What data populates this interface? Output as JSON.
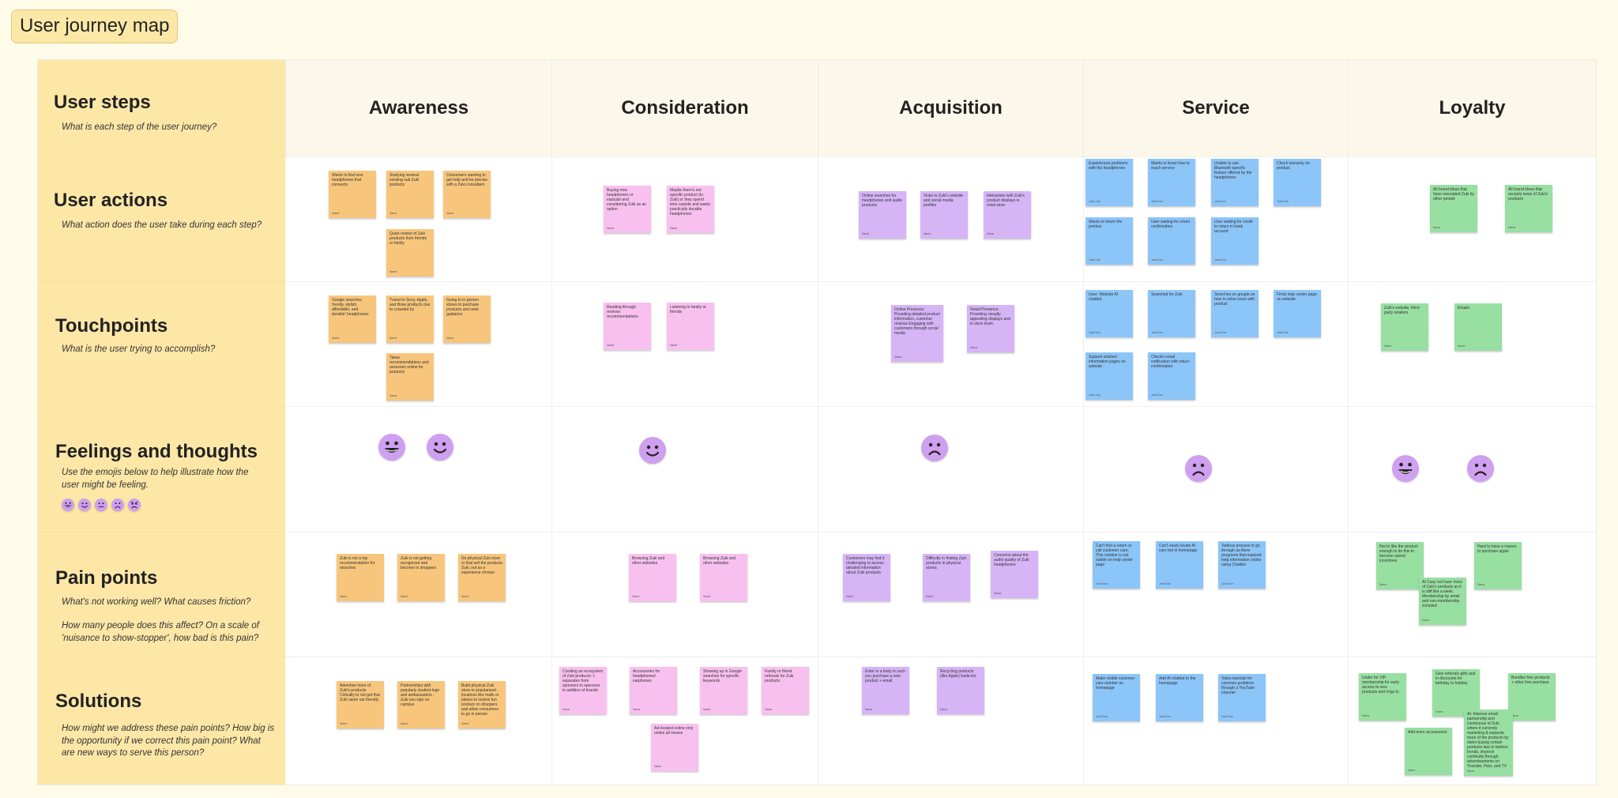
{
  "title": "User journey map",
  "columns": [
    "Awareness",
    "Consideration",
    "Acquisition",
    "Service",
    "Loyalty"
  ],
  "rows": {
    "user_steps": {
      "title": "User steps",
      "sub": "What is each step of the user journey?"
    },
    "user_actions": {
      "title": "User actions",
      "sub": "What action does the user take during each step?"
    },
    "touchpoints": {
      "title": "Touchpoints",
      "sub": "What is the user trying to accomplish?"
    },
    "feelings": {
      "title": "Feelings and thoughts",
      "sub": "Use the emojis below to help illustrate how the user might be feeling."
    },
    "pain_points": {
      "title": "Pain points",
      "sub1": "What's not working well? What causes friction?",
      "sub2": "How many people does this affect? On a scale of 'nuisance to show-stopper', how bad is this pain?"
    },
    "solutions": {
      "title": "Solutions",
      "sub": "How might we address these pain points? How big is the opportunity if we correct this pain point? What are new ways to serve this person?"
    }
  },
  "colors": {
    "orange": "#f7c67c",
    "pink": "#f8c0ef",
    "purple": "#d6b4f6",
    "blue": "#8cc5f8",
    "green": "#98dfa2",
    "label_bg": "#fde7a7",
    "emoji": "#cf9ff0"
  },
  "legend_emojis": [
    "very-happy",
    "happy",
    "neutral",
    "sad",
    "angry"
  ],
  "feelings": [
    {
      "column": "Awareness",
      "mood": "very-happy"
    },
    {
      "column": "Awareness",
      "mood": "happy"
    },
    {
      "column": "Consideration",
      "mood": "happy"
    },
    {
      "column": "Acquisition",
      "mood": "sad"
    },
    {
      "column": "Service",
      "mood": "sad"
    },
    {
      "column": "Loyalty",
      "mood": "very-happy"
    },
    {
      "column": "Loyalty",
      "mood": "sad"
    }
  ],
  "notes": [
    {
      "text": "Wants to find new headphones that connects",
      "author": "Name",
      "color": "orange"
    },
    {
      "text": "Studying several existing sub Zuki products",
      "author": "Name",
      "color": "orange"
    },
    {
      "text": "Consumers wanting to get help and be precise with a Zuki consultant",
      "author": "Name",
      "color": "orange"
    },
    {
      "text": "Quick review of Zuki products from friends or family",
      "author": "Name",
      "color": "orange"
    },
    {
      "text": "Buying new headphones or earbuds and considering Zuki as an option",
      "author": "Name",
      "color": "pink"
    },
    {
      "text": "Maybe there's not specific product (to Zuki) or they spend time outside and wants practically durable headphones",
      "author": "Name",
      "color": "pink"
    },
    {
      "text": "Online searches for headphones and audio products",
      "author": "Name",
      "color": "purple"
    },
    {
      "text": "Visits to Zuki's website and social media profiles",
      "author": "Name",
      "color": "purple"
    },
    {
      "text": "Interaction with Zuki's product displays in retail store",
      "author": "Name",
      "color": "purple"
    },
    {
      "text": "Experiences problems with the headphones",
      "author": "Jane Doe",
      "color": "blue"
    },
    {
      "text": "Wants to know how to reach service",
      "author": "Jane Doe",
      "color": "blue"
    },
    {
      "text": "Unable to use Bluetooth specific feature offered by the headphones",
      "author": "Jane Doe",
      "color": "blue"
    },
    {
      "text": "Check warranty on product",
      "author": "Jane Doe",
      "color": "blue"
    },
    {
      "text": "Wants to return the product",
      "author": "Jane Doe",
      "color": "blue"
    },
    {
      "text": "User waiting for return confirmation",
      "author": "Jane Doe",
      "color": "blue"
    },
    {
      "text": "User waiting for credit to return in bank account",
      "author": "Jane Doe",
      "color": "blue"
    },
    {
      "text": "All brand ideas that have resonated Zuki by other people",
      "author": "Name",
      "color": "green"
    },
    {
      "text": "All brand ideas that accepts news of Zuki's products",
      "author": "Name",
      "color": "green"
    },
    {
      "text": "Google searches 'trendy, stylish, affordable, and durable' headphones",
      "author": "Name",
      "color": "orange"
    },
    {
      "text": "Tuned to Sony, Apple, and Bose products due to crowded by",
      "author": "Name",
      "color": "orange"
    },
    {
      "text": "Going to in person stores to purchase products and seek guidance",
      "author": "Name",
      "color": "orange"
    },
    {
      "text": "Takes recommendations and assesses online for products",
      "author": "Name",
      "color": "orange"
    },
    {
      "text": "Reading through reviews recommendations",
      "author": "Name",
      "color": "pink"
    },
    {
      "text": "Listening to family or friends",
      "author": "Name",
      "color": "pink"
    },
    {
      "text": "Online Presence: Providing detailed product information, customer reviews Engaging with customers through social media",
      "author": "Name",
      "color": "purple"
    },
    {
      "text": "Retail Presence: Providing visually appealing displays and in store team",
      "author": "Name",
      "color": "purple"
    },
    {
      "text": "User: Website Al chatbot",
      "author": "Jane Doe",
      "color": "blue"
    },
    {
      "text": "Searched for Zuki",
      "author": "Jane Doe",
      "color": "blue"
    },
    {
      "text": "Searches on google on how to solve issue with product",
      "author": "Jane Doe",
      "color": "blue"
    },
    {
      "text": "Finds help center page on website",
      "author": "Jane Doe",
      "color": "blue"
    },
    {
      "text": "Support articles/ information pages on website",
      "author": "Jane Doe",
      "color": "blue"
    },
    {
      "text": "Checks email notification with return confirmation",
      "author": "Jane Doe",
      "color": "blue"
    },
    {
      "text": "Zuki's website, third-party retailers",
      "author": "Name",
      "color": "green"
    },
    {
      "text": "Emails",
      "author": "Name",
      "color": "green"
    },
    {
      "text": "Zuki is not a top recommendation for searches",
      "author": "Name",
      "color": "orange"
    },
    {
      "text": "Zuki is not getting recognized and become to shoppers",
      "author": "Name",
      "color": "orange"
    },
    {
      "text": "No physical Zuki store or that sell the products Zuki, not as a experience choose",
      "author": "Name",
      "color": "orange"
    },
    {
      "text": "Browsing Zuki and other websites",
      "author": "Name",
      "color": "pink"
    },
    {
      "text": "Browsing Zuki and other websites",
      "author": "Name",
      "color": "pink"
    },
    {
      "text": "Customers may find it challenging to access detailed information about Zuki products",
      "author": "Name",
      "color": "purple"
    },
    {
      "text": "Difficulty in finding Zuki products in physical stores",
      "author": "Name",
      "color": "purple"
    },
    {
      "text": "Concerns about the audio quality of Zuki headphones",
      "author": "Name",
      "color": "purple"
    },
    {
      "text": "Can't find a return or call customer care. This number is not visible on help center page",
      "author": "Jane Doe",
      "color": "blue"
    },
    {
      "text": "Can't easily locate AI care bot in homepage",
      "author": "Jane Doe",
      "color": "blue"
    },
    {
      "text": "Tedious process to go through as there programs that required help information online using Chatbot",
      "author": "Jane Doe",
      "color": "blue"
    },
    {
      "text": "Not to like the product enough to do this to become spend incentives",
      "author": "Name",
      "color": "green"
    },
    {
      "text": "Hard to have a reason to purchase again",
      "author": "Name",
      "color": "green"
    },
    {
      "text": "AI Casy not have more of Zuki's products as it is stiff like a week. Membership by email and non-membership included",
      "author": "Name",
      "color": "green"
    },
    {
      "text": "Advertise more of Zuki's products Critically to not get that Zuki name out friendly",
      "author": "Name",
      "color": "orange"
    },
    {
      "text": "Partnerships with popularly student-loge and ambassadors - Zuki you sign on campus",
      "author": "Name",
      "color": "orange"
    },
    {
      "text": "Build physical Zuki store to popularized locations like malls or places to instore fun product on shoppers and allow consumers to go in person",
      "author": "Name",
      "color": "orange"
    },
    {
      "text": "Creating an ecosystem of Zuki products: 1 separates from sponsors to sponsors in addition of brands",
      "author": "Name",
      "color": "pink"
    },
    {
      "text": "Accessories for headphones/ earphones",
      "author": "Name",
      "color": "pink"
    },
    {
      "text": "Showing up in Google searches for specific keywords",
      "author": "Name",
      "color": "pink"
    },
    {
      "text": "Family or friend referrals for Zuki products",
      "author": "Name",
      "color": "pink"
    },
    {
      "text": "Ad-located online only online all means",
      "author": "Name",
      "color": "pink"
    },
    {
      "text": "Enter in a body in such you purchase a new product + email",
      "author": "Name",
      "color": "purple"
    },
    {
      "text": "Recycling products (like Apple) trade-ins",
      "author": "Name",
      "color": "purple"
    },
    {
      "text": "Make visible customer care number on homepage",
      "author": "Jane Doe",
      "color": "blue"
    },
    {
      "text": "Add AI chatbot to the homepage",
      "author": "Jane Doe",
      "color": "blue"
    },
    {
      "text": "Video tutorials for common problems through a YouTube channel",
      "author": "Jane Doe",
      "color": "blue"
    },
    {
      "text": "Under for VIP membership for early access to new products and rings to",
      "author": "Name",
      "color": "green"
    },
    {
      "text": "Give referrals gifts and in discounts for birthday to holiday",
      "author": "Name",
      "color": "green"
    },
    {
      "text": "Bundles free products + other free purchase",
      "author": "Name",
      "color": "green"
    },
    {
      "text": "AI: Improve email partnership and continuous of Zuki where it currently marketing & expands more of the products by stairs buying certain products due to fashion trends, improve continuity through advertisements on Youtube, Hulu, and TV",
      "author": "Name",
      "color": "green"
    },
    {
      "text": "Add more accessories",
      "author": "Name",
      "color": "green"
    }
  ]
}
